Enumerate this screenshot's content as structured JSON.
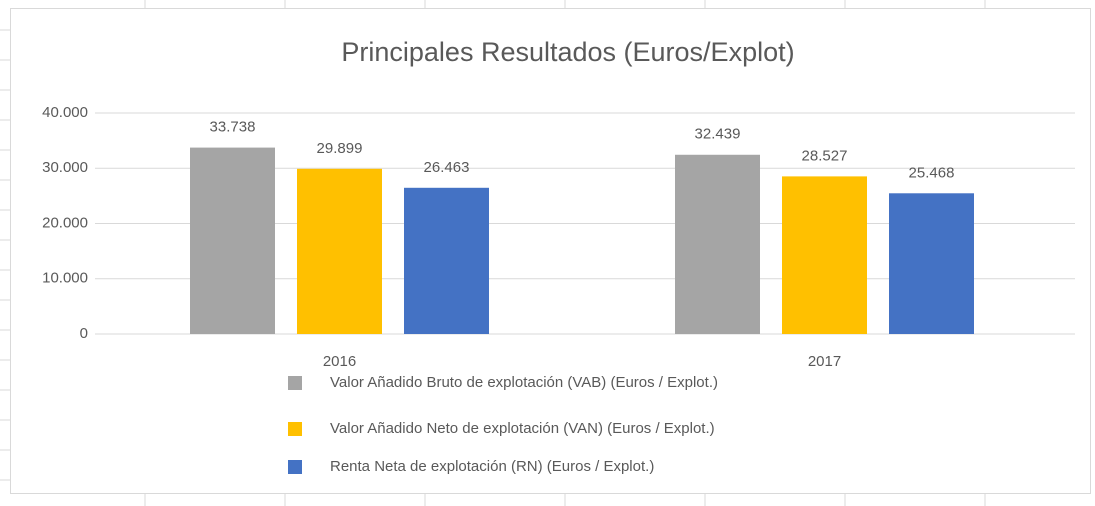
{
  "chart_data": {
    "type": "bar",
    "title": "Principales Resultados  (Euros/Explot)",
    "categories": [
      "2016",
      "2017"
    ],
    "series": [
      {
        "name": "Valor Añadido Bruto de explotación (VAB)  (Euros / Explot.)",
        "color": "#a5a5a5",
        "values": [
          33738,
          32439
        ],
        "value_labels": [
          "33.738",
          "32.439"
        ]
      },
      {
        "name": "Valor Añadido Neto de explotación (VAN)  (Euros / Explot.)",
        "color": "#ffc000",
        "values": [
          29899,
          28527
        ],
        "value_labels": [
          "29.899",
          "28.527"
        ]
      },
      {
        "name": "Renta Neta de explotación (RN)  (Euros / Explot.)",
        "color": "#4472c4",
        "values": [
          26463,
          25468
        ],
        "value_labels": [
          "26.463",
          "25.468"
        ]
      }
    ],
    "ylim": [
      0,
      40000
    ],
    "yticks": [
      0,
      {
        "value": 10000,
        "label": "10.000"
      },
      {
        "value": 20000,
        "label": "20.000"
      },
      {
        "value": 30000,
        "label": "30.000"
      },
      {
        "value": 40000,
        "label": "40.000"
      }
    ],
    "grid": true,
    "legend": "bottom"
  }
}
